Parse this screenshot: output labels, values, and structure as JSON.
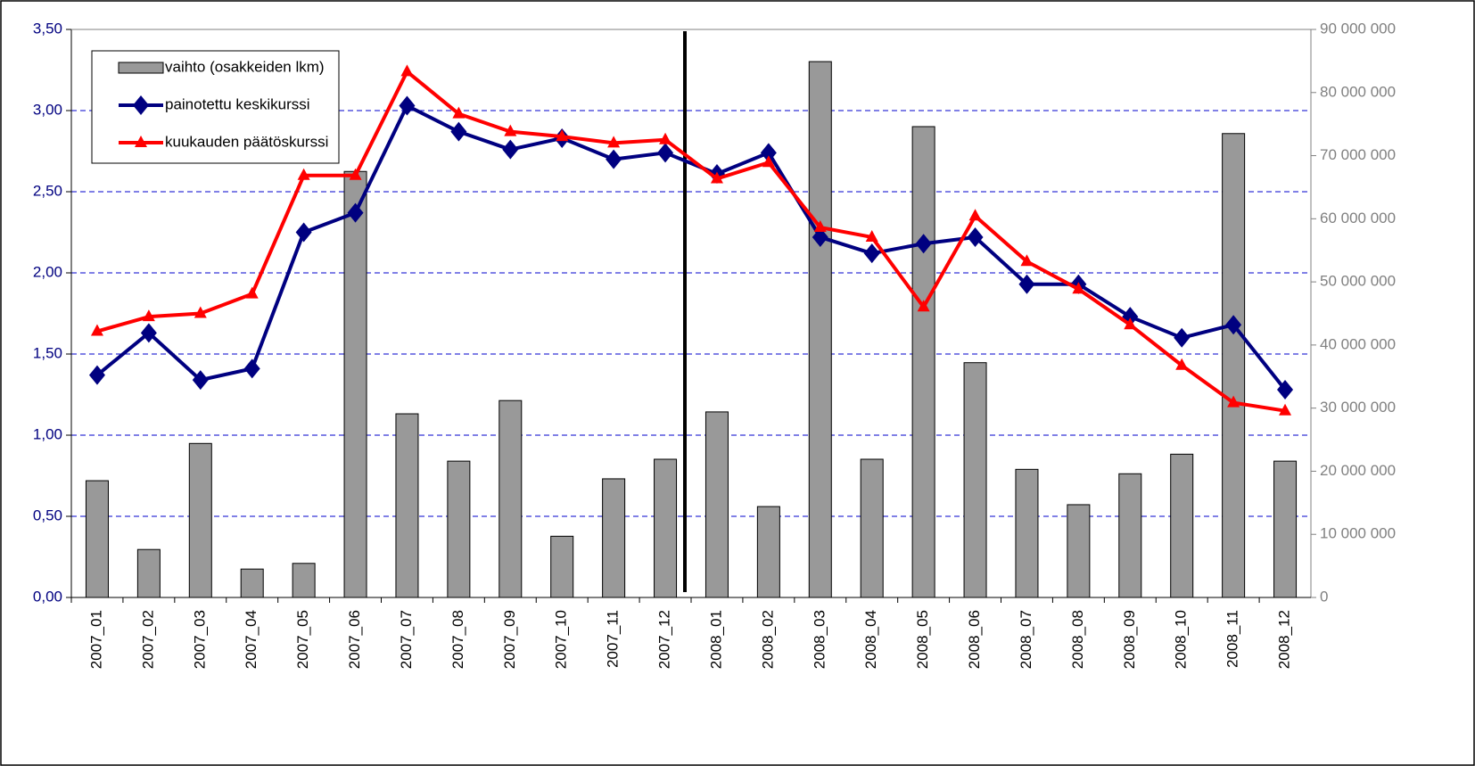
{
  "chart_data": {
    "type": "bar",
    "categories": [
      "2007_01",
      "2007_02",
      "2007_03",
      "2007_04",
      "2007_05",
      "2007_06",
      "2007_07",
      "2007_08",
      "2007_09",
      "2007_10",
      "2007_11",
      "2007_12",
      "2008_01",
      "2008_02",
      "2008_03",
      "2008_04",
      "2008_05",
      "2008_06",
      "2008_07",
      "2008_08",
      "2008_09",
      "2008_10",
      "2008_11",
      "2008_12"
    ],
    "series": [
      {
        "name": "vaihto (osakkeiden lkm)",
        "type": "bar",
        "axis": "y2",
        "color": "#999999",
        "values": [
          18500000,
          7600000,
          24400000,
          4500000,
          5400000,
          67500000,
          29100000,
          21600000,
          31200000,
          9700000,
          18800000,
          21900000,
          29400000,
          14400000,
          84900000,
          21900000,
          74600000,
          37200000,
          20300000,
          14700000,
          19600000,
          22700000,
          73500000,
          21600000
        ]
      },
      {
        "name": "painotettu keskikurssi",
        "type": "line",
        "marker": "diamond",
        "color": "#000080",
        "values": [
          1.37,
          1.63,
          1.34,
          1.41,
          2.25,
          2.37,
          3.03,
          2.87,
          2.76,
          2.83,
          2.7,
          2.74,
          2.61,
          2.74,
          2.22,
          2.12,
          2.18,
          2.22,
          1.93,
          1.93,
          1.73,
          1.6,
          1.68,
          1.28
        ]
      },
      {
        "name": "kuukauden päätöskurssi",
        "type": "line",
        "marker": "triangle",
        "color": "#ff0000",
        "values": [
          1.64,
          1.73,
          1.75,
          1.87,
          2.6,
          2.6,
          3.24,
          2.98,
          2.87,
          2.84,
          2.8,
          2.82,
          2.58,
          2.68,
          2.28,
          2.22,
          1.79,
          2.35,
          2.07,
          1.9,
          1.68,
          1.43,
          1.2,
          1.15
        ]
      }
    ],
    "ylim": [
      0,
      3.5
    ],
    "yticks": [
      {
        "value": 0,
        "label": "0,00"
      },
      {
        "value": 0.5,
        "label": "0,50"
      },
      {
        "value": 1,
        "label": "1,00"
      },
      {
        "value": 1.5,
        "label": "1,50"
      },
      {
        "value": 2,
        "label": "2,00"
      },
      {
        "value": 2.5,
        "label": "2,50"
      },
      {
        "value": 3,
        "label": "3,00"
      },
      {
        "value": 3.5,
        "label": "3,50"
      }
    ],
    "y2lim": [
      0,
      90000000
    ],
    "y2ticks": [
      0,
      {
        "value": 10000000,
        "label": "10 000 000"
      },
      {
        "value": 20000000,
        "label": "20 000 000"
      },
      {
        "value": 30000000,
        "label": "30 000 000"
      },
      {
        "value": 40000000,
        "label": "40 000 000"
      },
      {
        "value": 50000000,
        "label": "50 000 000"
      },
      {
        "value": 60000000,
        "label": "60 000 000"
      },
      {
        "value": 70000000,
        "label": "70 000 000"
      },
      {
        "value": 80000000,
        "label": "80 000 000"
      },
      {
        "value": 90000000,
        "label": "90 000 000"
      }
    ],
    "grid": true,
    "legend": "top-left"
  }
}
